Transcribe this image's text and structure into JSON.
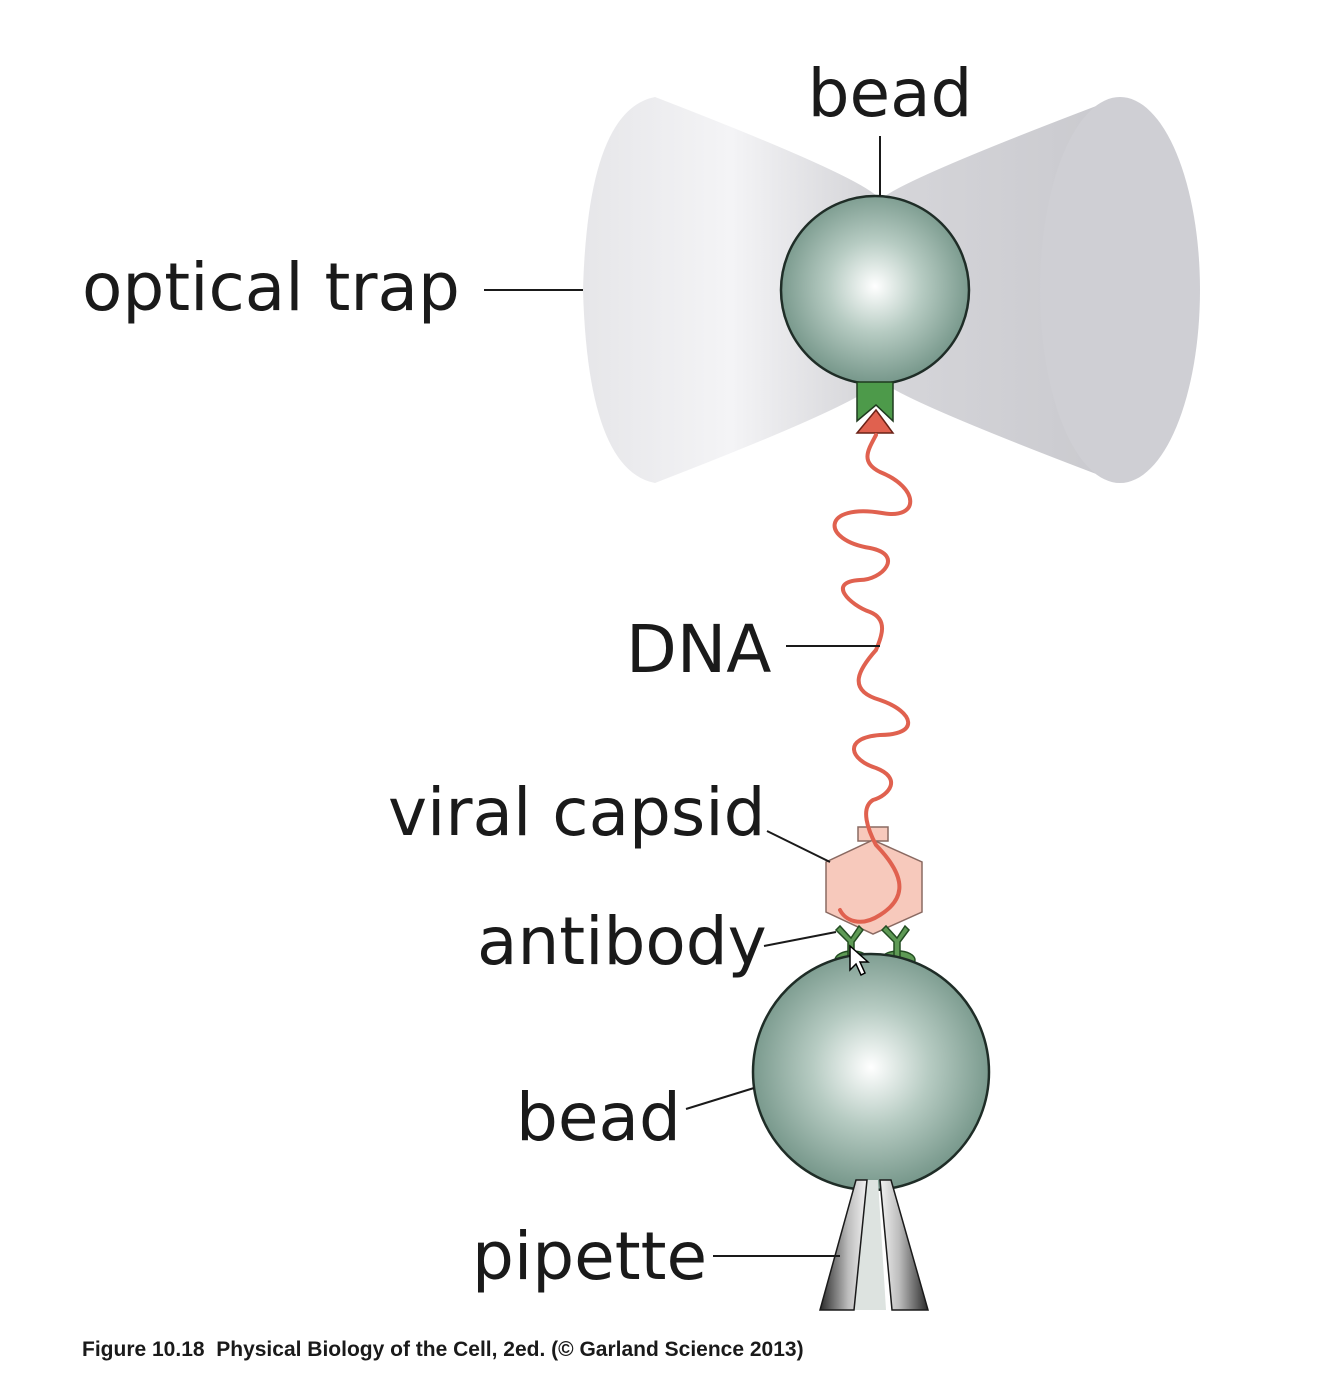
{
  "labels": {
    "bead_top": "bead",
    "optical_trap": "optical trap",
    "dna": "DNA",
    "viral_capsid": "viral capsid",
    "antibody": "antibody",
    "bead_bottom": "bead",
    "pipette": "pipette"
  },
  "caption": {
    "figure": "Figure 10.18",
    "text": "Physical Biology of the Cell, 2ed. (© Garland Science 2013)"
  },
  "colors": {
    "bead": "#7f9f92",
    "dna": "#e0614f",
    "capsid": "#f7c9bc",
    "antibody": "#5e9a55",
    "trap": "#d8d8dc"
  }
}
